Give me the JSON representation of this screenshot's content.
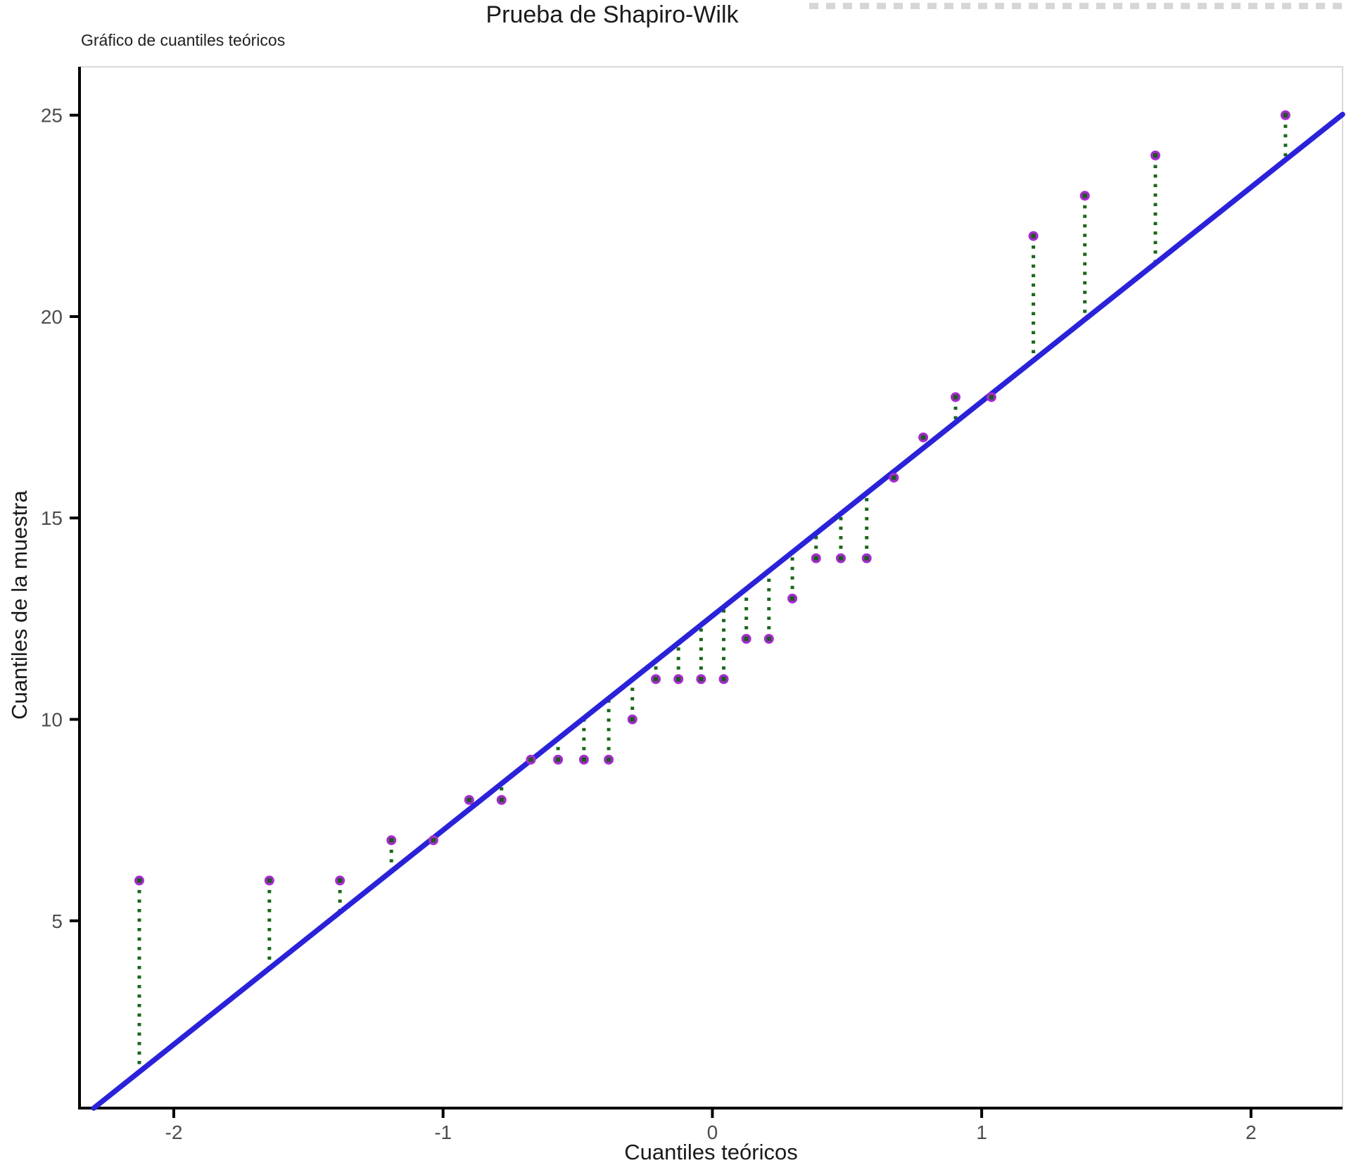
{
  "chart_data": {
    "type": "scatter",
    "subtype": "qq-plot",
    "title": "Prueba de Shapiro-Wilk",
    "subtitle": "Gráfico de cuantiles teóricos",
    "xlabel": "Cuantiles teóricos",
    "ylabel": "Cuantiles de la muestra",
    "grid": false,
    "legend": "none",
    "xlim": [
      -2.35,
      2.34
    ],
    "ylim": [
      0.35,
      26.2
    ],
    "x_ticks": [
      "-2",
      "-1",
      "0",
      "1",
      "2"
    ],
    "x_tick_values": [
      -2,
      -1,
      0,
      1,
      2
    ],
    "y_ticks": [
      "5",
      "10",
      "15",
      "20",
      "25"
    ],
    "y_tick_values": [
      5,
      10,
      15,
      20,
      25
    ],
    "points": {
      "x": [
        -2.128,
        -1.645,
        -1.383,
        -1.192,
        -1.036,
        -0.903,
        -0.783,
        -0.674,
        -0.573,
        -0.477,
        -0.385,
        -0.297,
        -0.21,
        -0.126,
        -0.042,
        0.042,
        0.126,
        0.21,
        0.297,
        0.385,
        0.477,
        0.573,
        0.674,
        0.783,
        0.903,
        1.036,
        1.192,
        1.383,
        1.645,
        2.128
      ],
      "y": [
        6,
        6,
        6,
        7,
        7,
        8,
        8,
        9,
        9,
        9,
        9,
        10,
        11,
        11,
        11,
        11,
        12,
        12,
        13,
        14,
        14,
        14,
        16,
        17,
        18,
        18,
        22,
        23,
        24,
        25
      ]
    },
    "reference_line": {
      "intercept": 12.57,
      "slope": 5.32
    },
    "residual_segments": true,
    "colors": {
      "point": "#A62BD0",
      "point_center": "#1E5B1E",
      "reference_line": "#2A22D9",
      "residual": "#186818",
      "axis": "#000000",
      "tick_label": "#4D4D4D",
      "text": "#1A1A1A",
      "panel_border": "#D9D9D9",
      "background": "#FFFFFF"
    }
  }
}
